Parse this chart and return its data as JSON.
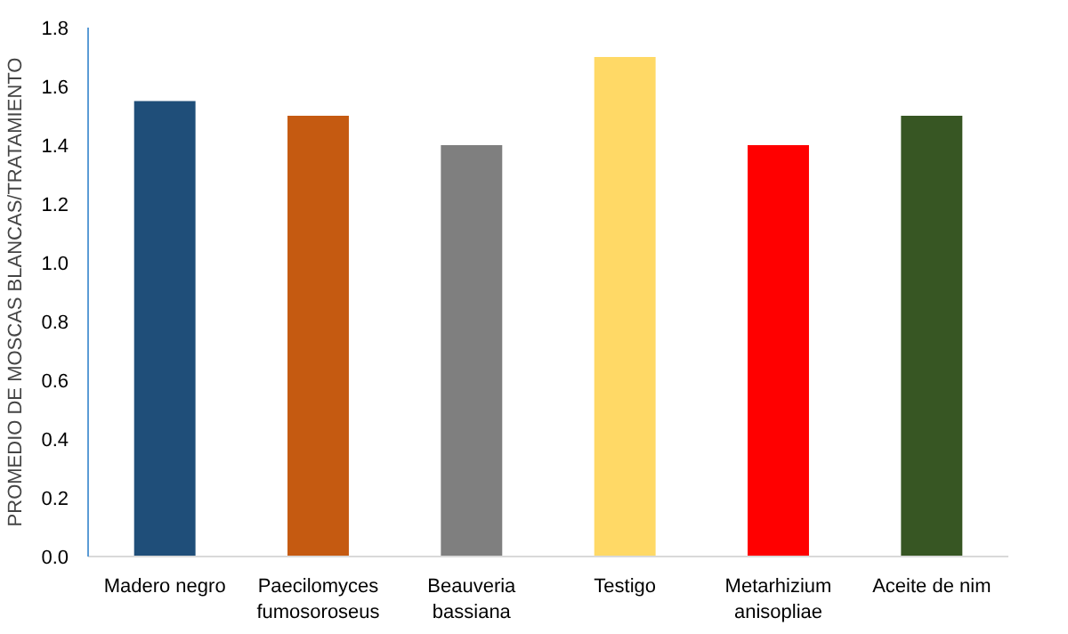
{
  "chart_data": {
    "type": "bar",
    "ylabel": "PROMEDIO DE MOSCAS BLANCAS/TRATAMIENTO",
    "categories": [
      "Madero negro",
      "Paecilomyces fumosoroseus",
      "Beauveria bassiana",
      "Testigo",
      "Metarhizium anisopliae",
      "Aceite de nim"
    ],
    "values": [
      1.55,
      1.5,
      1.4,
      1.7,
      1.4,
      1.5
    ],
    "colors": [
      "#1f4e79",
      "#c55a11",
      "#7f7f7f",
      "#ffd966",
      "#ff0000",
      "#375623"
    ],
    "ylim": [
      0,
      1.8
    ],
    "yticks": [
      {
        "value": 0,
        "label": "0.0"
      },
      0.2,
      0.4,
      0.6,
      0.8,
      {
        "value": 1,
        "label": "1.0"
      },
      1.2,
      1.4,
      1.6,
      1.8
    ],
    "grid": false
  }
}
